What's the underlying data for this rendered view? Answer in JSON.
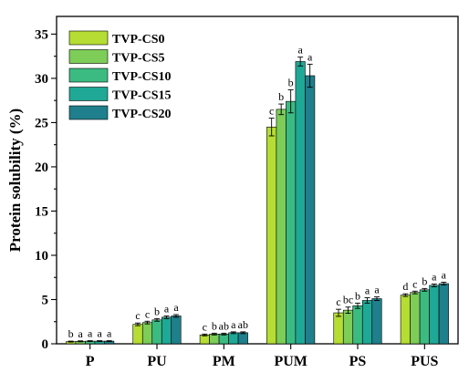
{
  "chart_data": {
    "type": "bar",
    "title": "",
    "xlabel": "",
    "ylabel": "Protein solubility (%)",
    "ylim": [
      0,
      37
    ],
    "yticks": [
      0,
      5,
      10,
      15,
      20,
      25,
      30,
      35
    ],
    "grid": false,
    "legend_position": "top-left",
    "categories": [
      "P",
      "PU",
      "PM",
      "PUM",
      "PS",
      "PUS"
    ],
    "series": [
      {
        "name": "TVP-CS0",
        "color": "#b5dd34",
        "values": [
          0.25,
          2.2,
          1.0,
          24.5,
          3.5,
          5.5
        ],
        "errors": [
          0.05,
          0.15,
          0.1,
          1.0,
          0.4,
          0.15
        ],
        "sig": [
          "b",
          "c",
          "c",
          "c",
          "c",
          "d"
        ]
      },
      {
        "name": "TVP-CS5",
        "color": "#7dcd58",
        "values": [
          0.28,
          2.4,
          1.1,
          26.5,
          3.8,
          5.8
        ],
        "errors": [
          0.05,
          0.15,
          0.1,
          0.6,
          0.35,
          0.15
        ],
        "sig": [
          "a",
          "c",
          "b",
          "b",
          "bc",
          "c"
        ]
      },
      {
        "name": "TVP-CS10",
        "color": "#3bbb82",
        "values": [
          0.3,
          2.7,
          1.1,
          27.4,
          4.3,
          6.1
        ],
        "errors": [
          0.05,
          0.15,
          0.1,
          1.3,
          0.3,
          0.15
        ],
        "sig": [
          "a",
          "b",
          "ab",
          "b",
          "b",
          "b"
        ]
      },
      {
        "name": "TVP-CS15",
        "color": "#1fa896",
        "values": [
          0.3,
          3.0,
          1.25,
          31.9,
          4.9,
          6.6
        ],
        "errors": [
          0.05,
          0.15,
          0.1,
          0.5,
          0.3,
          0.15
        ],
        "sig": [
          "a",
          "a",
          "a",
          "a",
          "a",
          "a"
        ]
      },
      {
        "name": "TVP-CS20",
        "color": "#1f7f8c",
        "values": [
          0.3,
          3.15,
          1.25,
          30.3,
          5.1,
          6.8
        ],
        "errors": [
          0.05,
          0.15,
          0.1,
          1.3,
          0.2,
          0.15
        ],
        "sig": [
          "a",
          "a",
          "ab",
          "a",
          "a",
          "a"
        ]
      }
    ]
  }
}
